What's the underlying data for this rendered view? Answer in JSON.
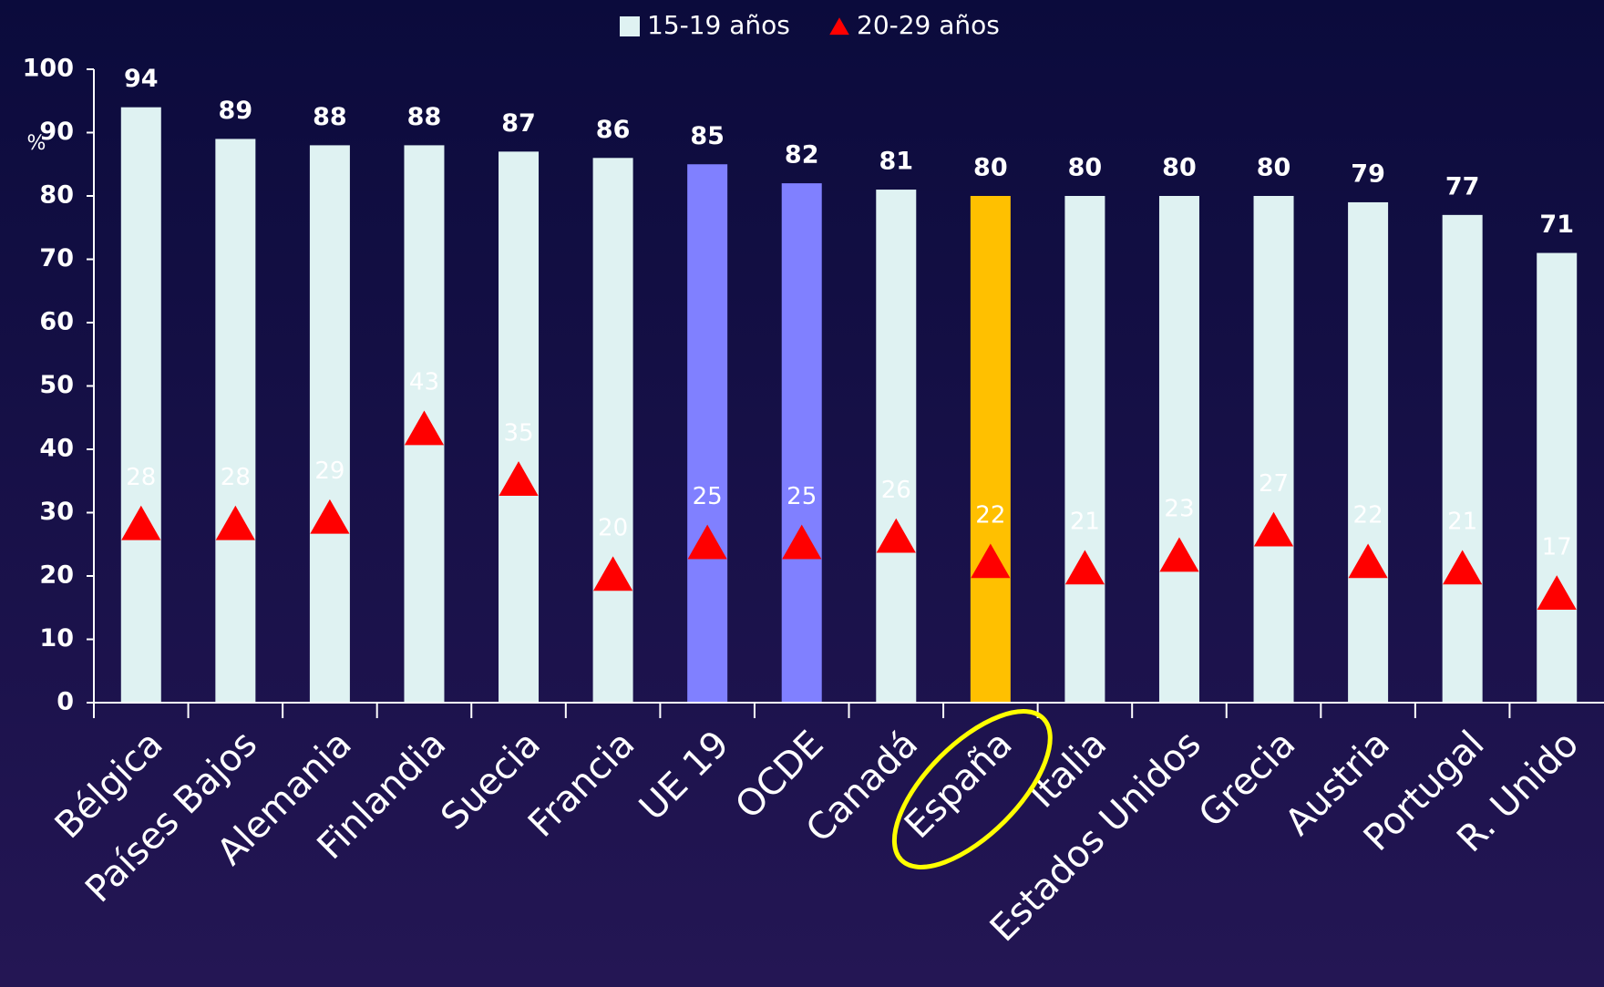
{
  "chart_data": {
    "type": "bar",
    "y_label": "%",
    "categories": [
      "Bélgica",
      "Países Bajos",
      "Alemania",
      "Finlandia",
      "Suecia",
      "Francia",
      "UE 19",
      "OCDE",
      "Canadá",
      "España",
      "Italia",
      "Estados Unidos",
      "Grecia",
      "Austria",
      "Portugal",
      "R. Unido"
    ],
    "series": [
      {
        "name": "15-19 años",
        "type": "bar",
        "color": "#dff2f2",
        "colors": [
          "#dff2f2",
          "#dff2f2",
          "#dff2f2",
          "#dff2f2",
          "#dff2f2",
          "#dff2f2",
          "#8080ff",
          "#8080ff",
          "#dff2f2",
          "#ffc000",
          "#dff2f2",
          "#dff2f2",
          "#dff2f2",
          "#dff2f2",
          "#dff2f2",
          "#dff2f2"
        ],
        "values": [
          94,
          89,
          88,
          88,
          87,
          86,
          85,
          82,
          81,
          80,
          80,
          80,
          80,
          79,
          77,
          71
        ]
      },
      {
        "name": "20-29 años",
        "type": "marker",
        "color": "#ff0000",
        "values": [
          28,
          28,
          29,
          43,
          35,
          20,
          25,
          25,
          26,
          22,
          21,
          23,
          27,
          22,
          21,
          17
        ]
      }
    ],
    "ylim": [
      0,
      100
    ],
    "yticks": [
      0,
      10,
      20,
      30,
      40,
      50,
      60,
      70,
      80,
      90,
      100
    ],
    "grid": false
  }
}
